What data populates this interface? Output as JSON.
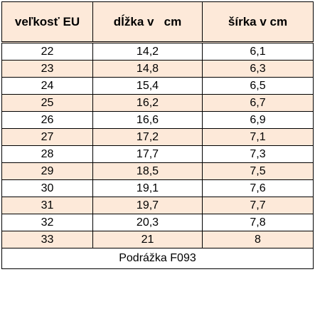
{
  "colors": {
    "header_bg": "#FDE9D9",
    "row_odd_bg": "#FFFFFF",
    "row_even_bg": "#FDE9D9",
    "border": "#000000",
    "text": "#000000"
  },
  "table": {
    "headers": [
      "veľkosť EU",
      "dĺžka v   cm",
      "šírka v cm"
    ],
    "rows": [
      [
        "22",
        "14,2",
        "6,1"
      ],
      [
        "23",
        "14,8",
        "6,3"
      ],
      [
        "24",
        "15,4",
        "6,5"
      ],
      [
        "25",
        "16,2",
        "6,7"
      ],
      [
        "26",
        "16,6",
        "6,9"
      ],
      [
        "27",
        "17,2",
        "7,1"
      ],
      [
        "28",
        "17,7",
        "7,3"
      ],
      [
        "29",
        "18,5",
        "7,5"
      ],
      [
        "30",
        "19,1",
        "7,6"
      ],
      [
        "31",
        "19,7",
        "7,7"
      ],
      [
        "32",
        "20,3",
        "7,8"
      ],
      [
        "33",
        "21",
        "8"
      ]
    ],
    "footer": "Podrážka F093"
  }
}
